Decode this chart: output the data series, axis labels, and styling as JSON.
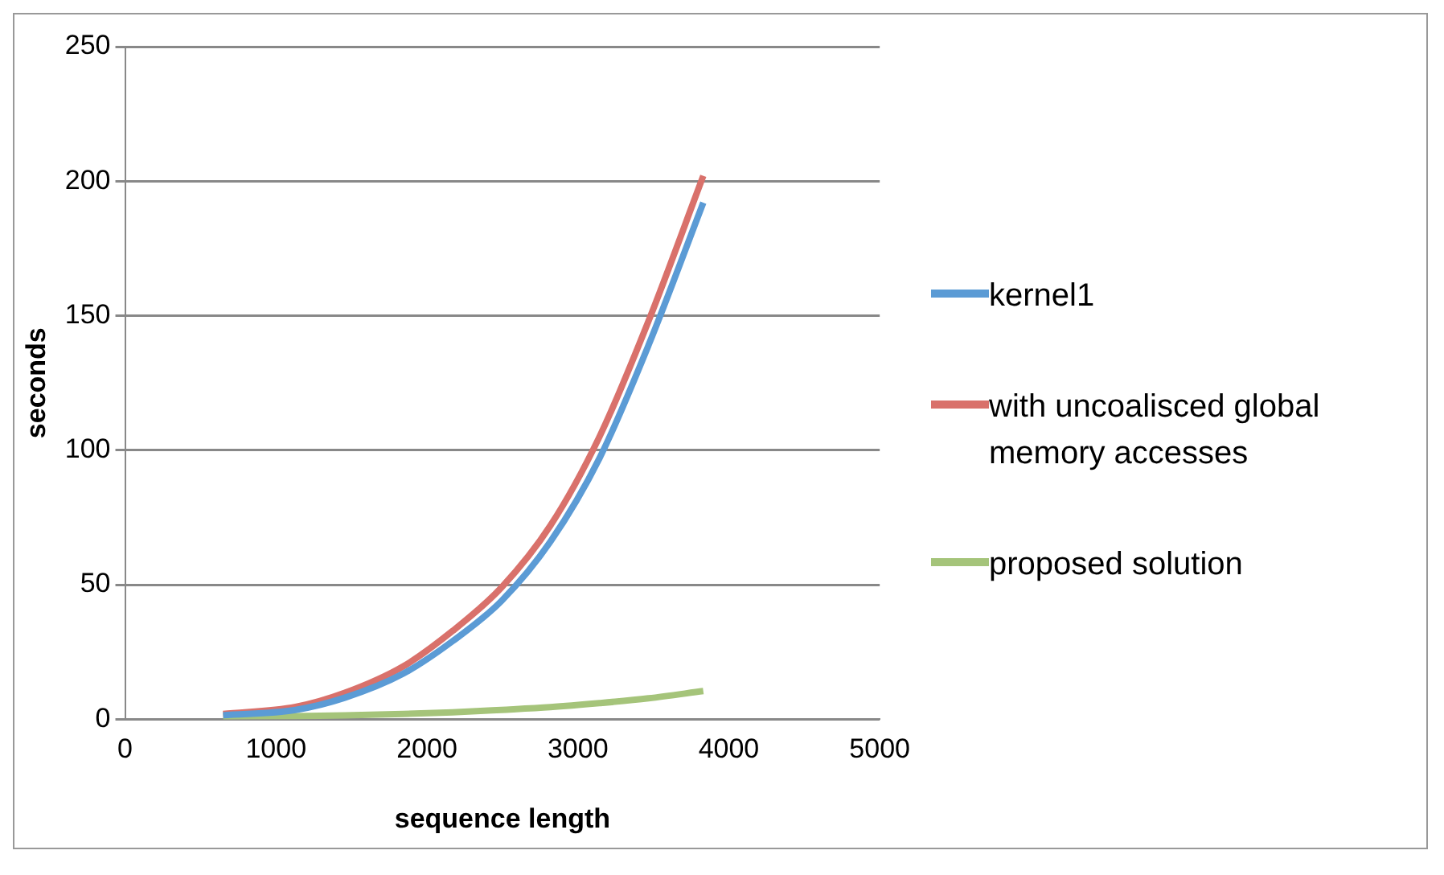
{
  "chart_data": {
    "type": "line",
    "xlabel": "sequence length",
    "ylabel": "seconds",
    "xlim": [
      0,
      5000
    ],
    "xticks": [
      0,
      1000,
      2000,
      3000,
      4000,
      5000
    ],
    "ylim": [
      0,
      250
    ],
    "yticks": [
      0,
      50,
      100,
      150,
      200,
      250
    ],
    "grid": "y",
    "legend": "right",
    "marker": "none",
    "line_style": "solid",
    "x": [
      650,
      1130,
      1455,
      1844,
      2169,
      2494,
      2818,
      3143,
      3468,
      3831
    ],
    "series": [
      {
        "name": "kernel1",
        "color": "#5b9bd5",
        "values": [
          1.5,
          3.5,
          8,
          17,
          29,
          44,
          66,
          97,
          139,
          192
        ]
      },
      {
        "name": "with uncoalisced global memory accesses",
        "color": "#d9716b",
        "values": [
          2,
          4.6,
          9.8,
          19.7,
          32.8,
          49,
          72,
          105,
          148,
          202
        ]
      },
      {
        "name": "proposed solution",
        "color": "#a5c47a",
        "values": [
          1,
          1.2,
          1.5,
          2,
          2.6,
          3.5,
          4.5,
          6,
          7.8,
          10.5
        ]
      }
    ]
  }
}
